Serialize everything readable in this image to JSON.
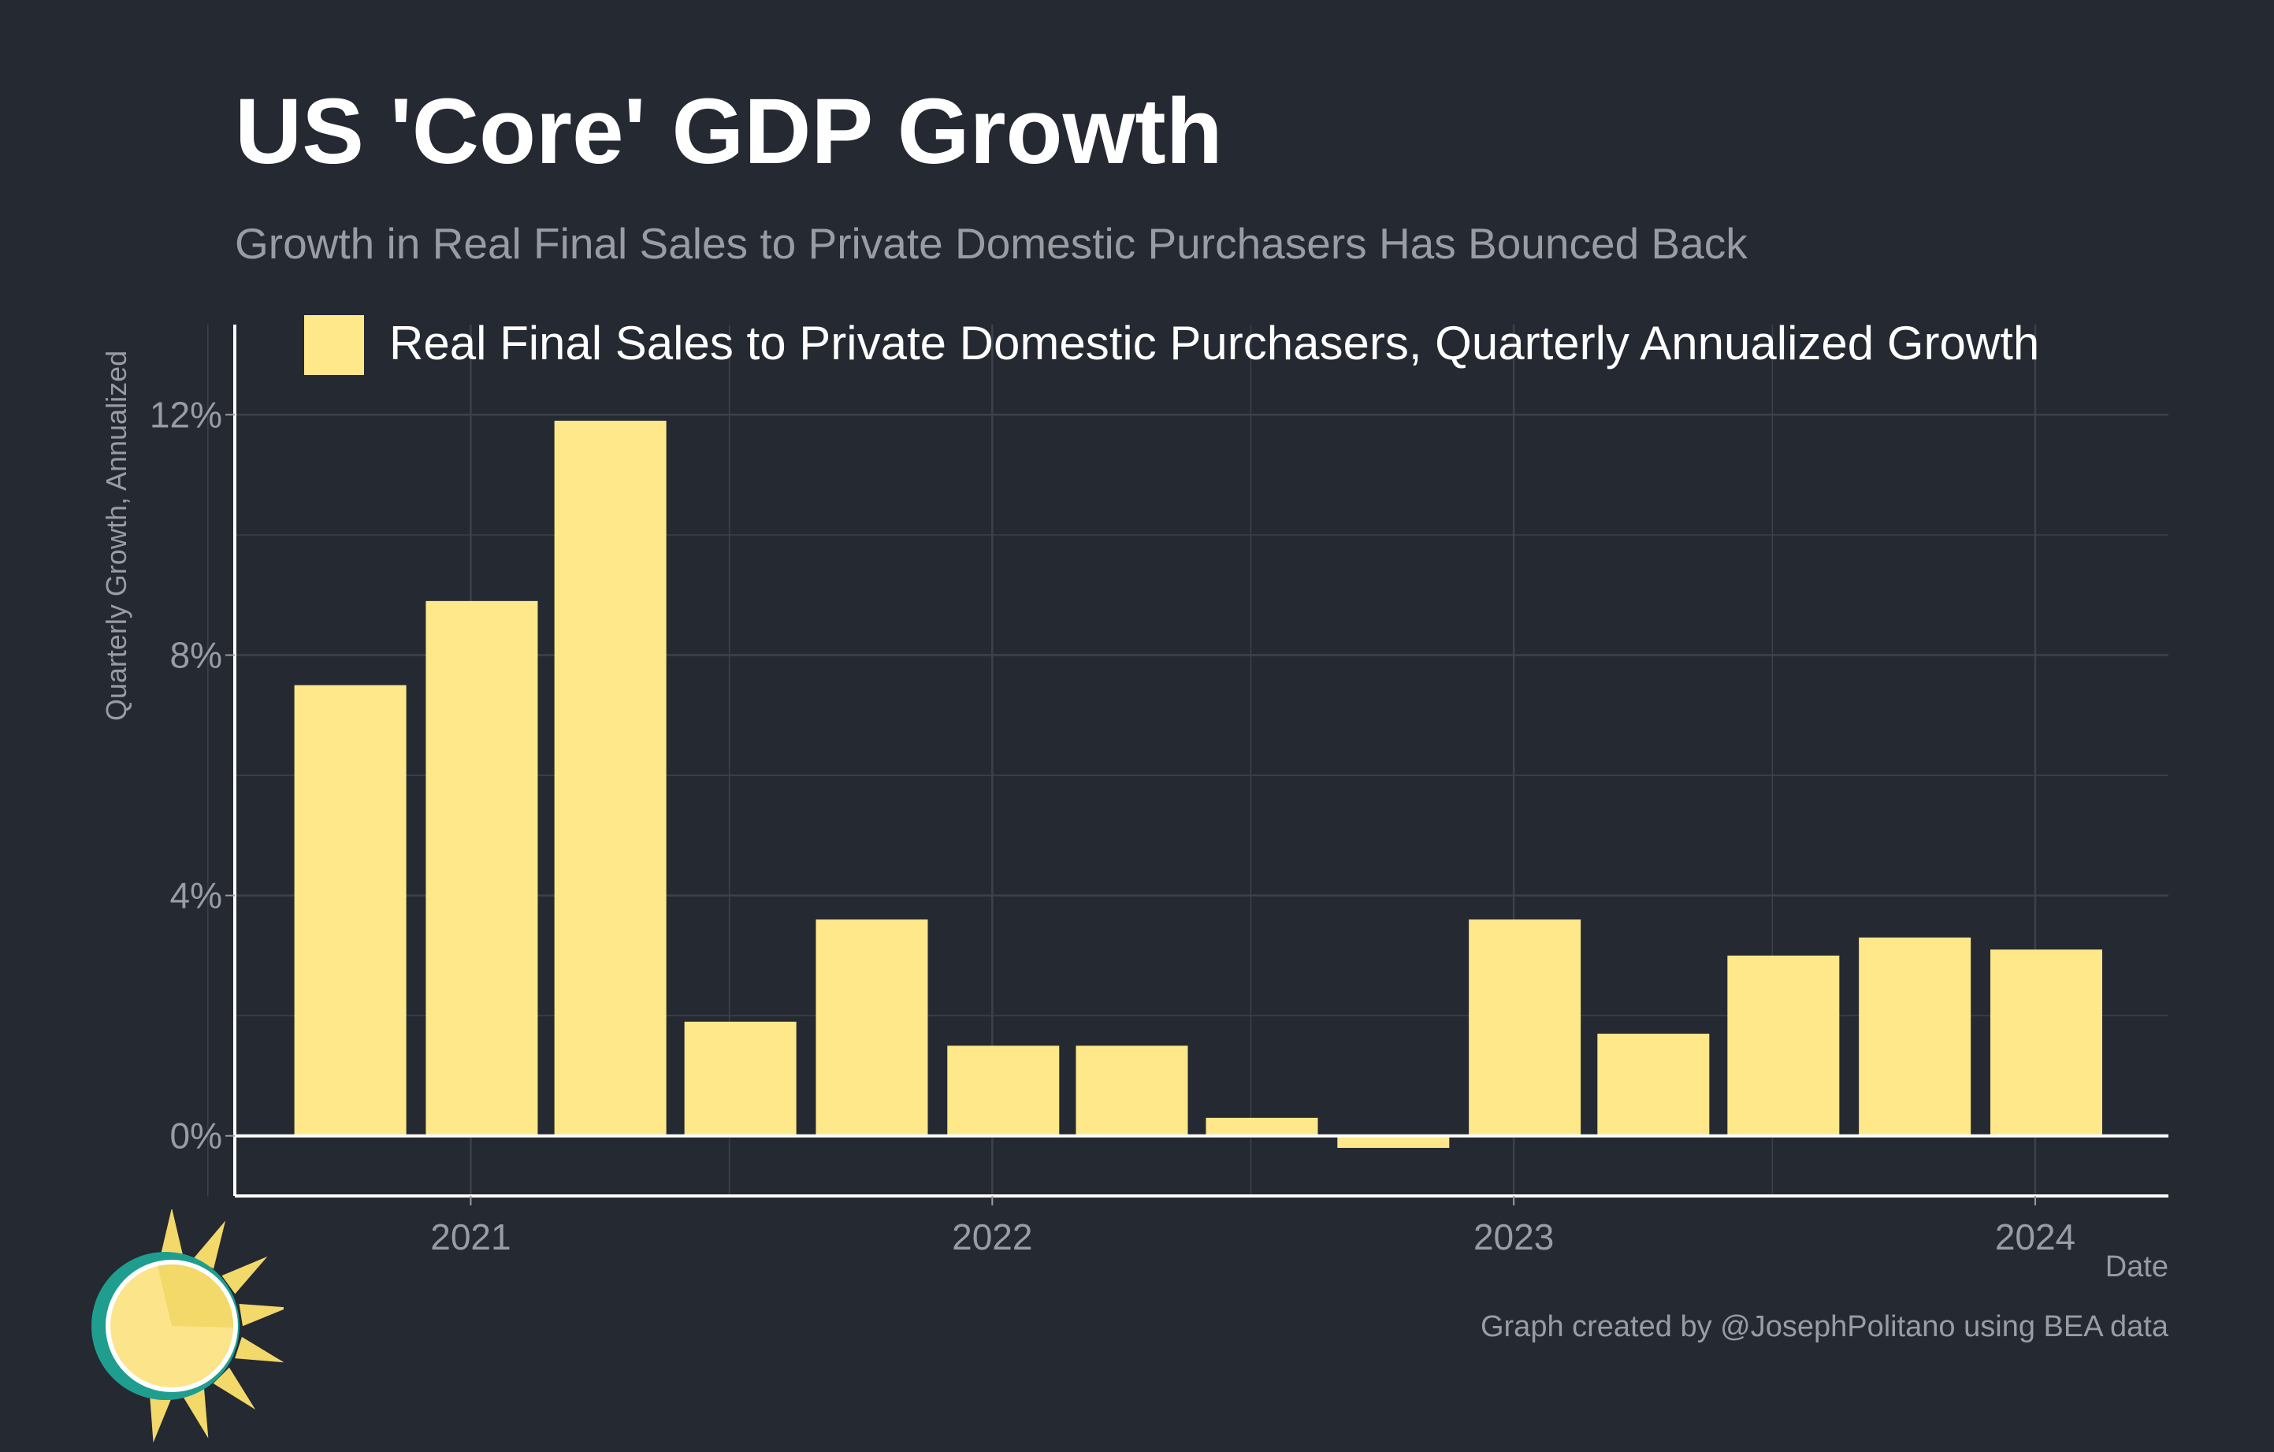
{
  "title": "US 'Core' GDP Growth",
  "subtitle": "Growth in Real Final Sales to Private Domestic Purchasers Has Bounced Back",
  "caption": "Graph created by @JosephPolitano using BEA data",
  "colors": {
    "background": "#252932",
    "bar": "#fee88a",
    "grid": "#3d414a",
    "axis": "#ffffff",
    "muted_text": "#9a9ca3"
  },
  "logo": {
    "icon": "sun-icon"
  },
  "chart_data": {
    "type": "bar",
    "xlabel": "Date",
    "ylabel": "Quarterly Growth, Annualized",
    "ylim": [
      -1.0,
      13.5
    ],
    "y_ticks": [
      0,
      4,
      8,
      12
    ],
    "y_tick_labels": [
      "0%",
      "4%",
      "8%",
      "12%"
    ],
    "x_ticks": [
      "2021",
      "2022",
      "2023",
      "2024"
    ],
    "grid": true,
    "legend_position": "top",
    "series": [
      {
        "name": "Real Final Sales to Private Domestic Purchasers, Quarterly Annualized Growth",
        "color": "#fee88a",
        "points": [
          {
            "date": "2020-10-01",
            "value": 7.5
          },
          {
            "date": "2021-01-01",
            "value": 8.9
          },
          {
            "date": "2021-04-01",
            "value": 11.9
          },
          {
            "date": "2021-07-01",
            "value": 1.9
          },
          {
            "date": "2021-10-01",
            "value": 3.6
          },
          {
            "date": "2022-01-01",
            "value": 1.5
          },
          {
            "date": "2022-04-01",
            "value": 1.5
          },
          {
            "date": "2022-07-01",
            "value": 0.3
          },
          {
            "date": "2022-10-01",
            "value": -0.2
          },
          {
            "date": "2023-01-01",
            "value": 3.6
          },
          {
            "date": "2023-04-01",
            "value": 1.7
          },
          {
            "date": "2023-07-01",
            "value": 3.0
          },
          {
            "date": "2023-10-01",
            "value": 3.3
          },
          {
            "date": "2024-01-01",
            "value": 3.1
          }
        ]
      }
    ]
  }
}
